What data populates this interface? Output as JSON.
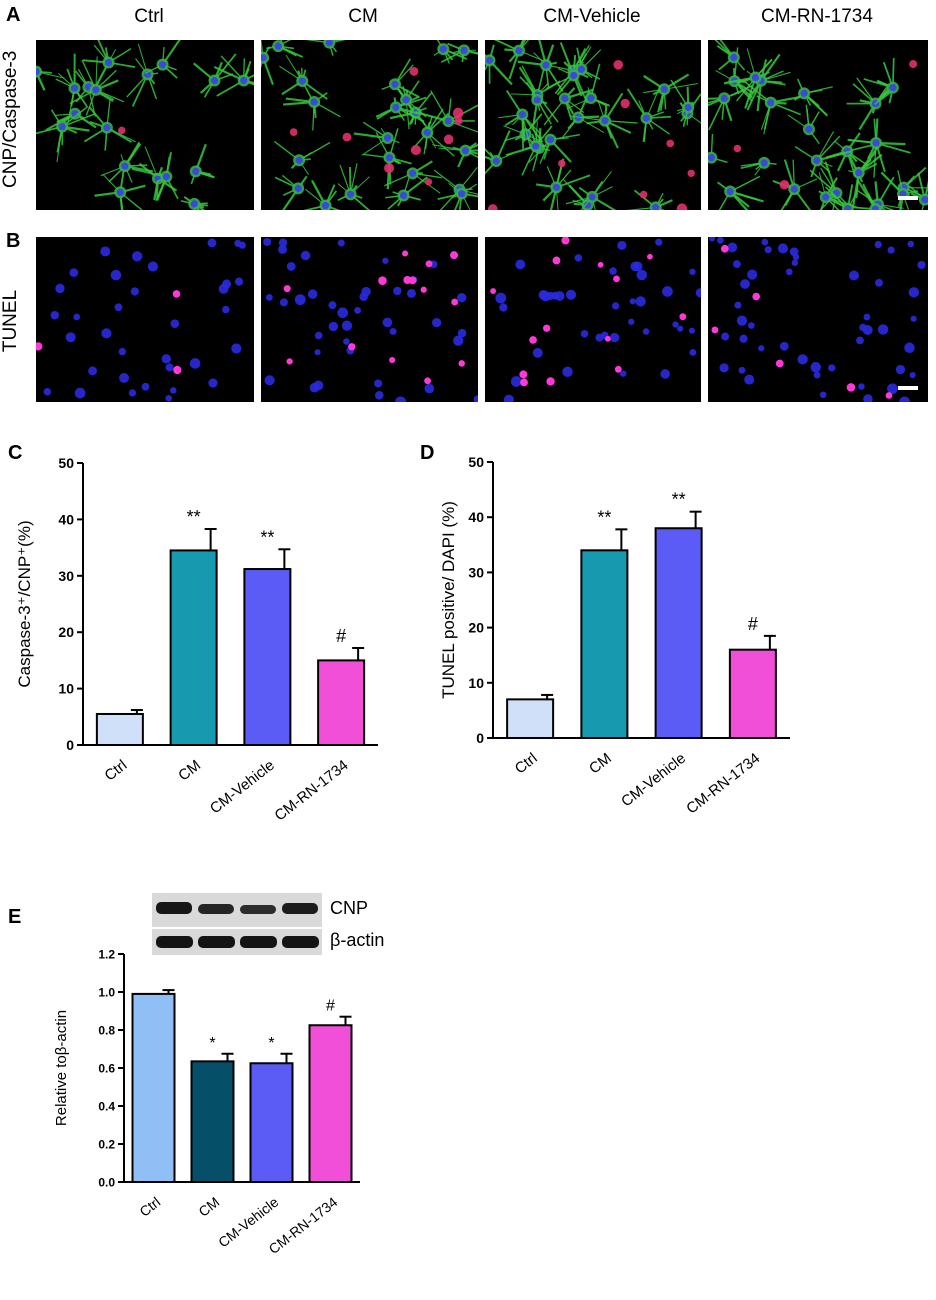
{
  "panels": {
    "A": "A",
    "B": "B",
    "C": "C",
    "D": "D",
    "E": "E"
  },
  "micrographs": {
    "columns": [
      "Ctrl",
      "CM",
      "CM-Vehicle",
      "CM-RN-1734"
    ],
    "rows": [
      "CNP/Caspase-3",
      "TUNEL"
    ]
  },
  "blot": {
    "bands": [
      "CNP",
      "β-actin"
    ]
  },
  "colors": {
    "ctrl_C": "#cfe0f8",
    "cm_C": "#169ab0",
    "vehicle": "#5b5bf5",
    "rn": "#f24fd9",
    "ctrl_E": "#8fbff5",
    "cm_E": "#055068",
    "axis": "#000000"
  },
  "chart_data": [
    {
      "panel": "C",
      "type": "bar",
      "categories": [
        "Ctrl",
        "CM",
        "CM-Vehicle",
        "CM-RN-1734"
      ],
      "values": [
        5.5,
        34.5,
        31.2,
        15.0
      ],
      "errors": [
        0.7,
        3.8,
        3.5,
        2.2
      ],
      "annotations": [
        "",
        "**",
        "**",
        "#"
      ],
      "ylabel": "Caspase-3⁺/CNP⁺(%)",
      "ylim": [
        0,
        50
      ],
      "yticks": [
        "0",
        "10",
        "20",
        "30",
        "40",
        "50"
      ],
      "bar_colors": [
        "#cfe0f8",
        "#169ab0",
        "#5b5bf5",
        "#f24fd9"
      ]
    },
    {
      "panel": "D",
      "type": "bar",
      "categories": [
        "Ctrl",
        "CM",
        "CM-Vehicle",
        "CM-RN-1734"
      ],
      "values": [
        7.0,
        34.0,
        38.0,
        16.0
      ],
      "errors": [
        0.8,
        3.8,
        3.0,
        2.5
      ],
      "annotations": [
        "",
        "**",
        "**",
        "#"
      ],
      "ylabel": "TUNEL positive/ DAPI (%)",
      "ylim": [
        0,
        50
      ],
      "yticks": [
        "0",
        "10",
        "20",
        "30",
        "40",
        "50"
      ],
      "bar_colors": [
        "#cfe0f8",
        "#169ab0",
        "#5b5bf5",
        "#f24fd9"
      ]
    },
    {
      "panel": "E",
      "type": "bar",
      "categories": [
        "Ctrl",
        "CM",
        "CM-Vehicle",
        "CM-RN-1734"
      ],
      "values": [
        0.99,
        0.635,
        0.625,
        0.825
      ],
      "errors": [
        0.02,
        0.04,
        0.05,
        0.045
      ],
      "annotations": [
        "",
        "*",
        "*",
        "#"
      ],
      "ylabel": "Relative toβ-actin",
      "ylim": [
        0,
        1.2
      ],
      "yticks": [
        "0.0",
        "0.2",
        "0.4",
        "0.6",
        "0.8",
        "1.0",
        "1.2"
      ],
      "bar_colors": [
        "#8fbff5",
        "#055068",
        "#5b5bf5",
        "#f24fd9"
      ]
    }
  ]
}
